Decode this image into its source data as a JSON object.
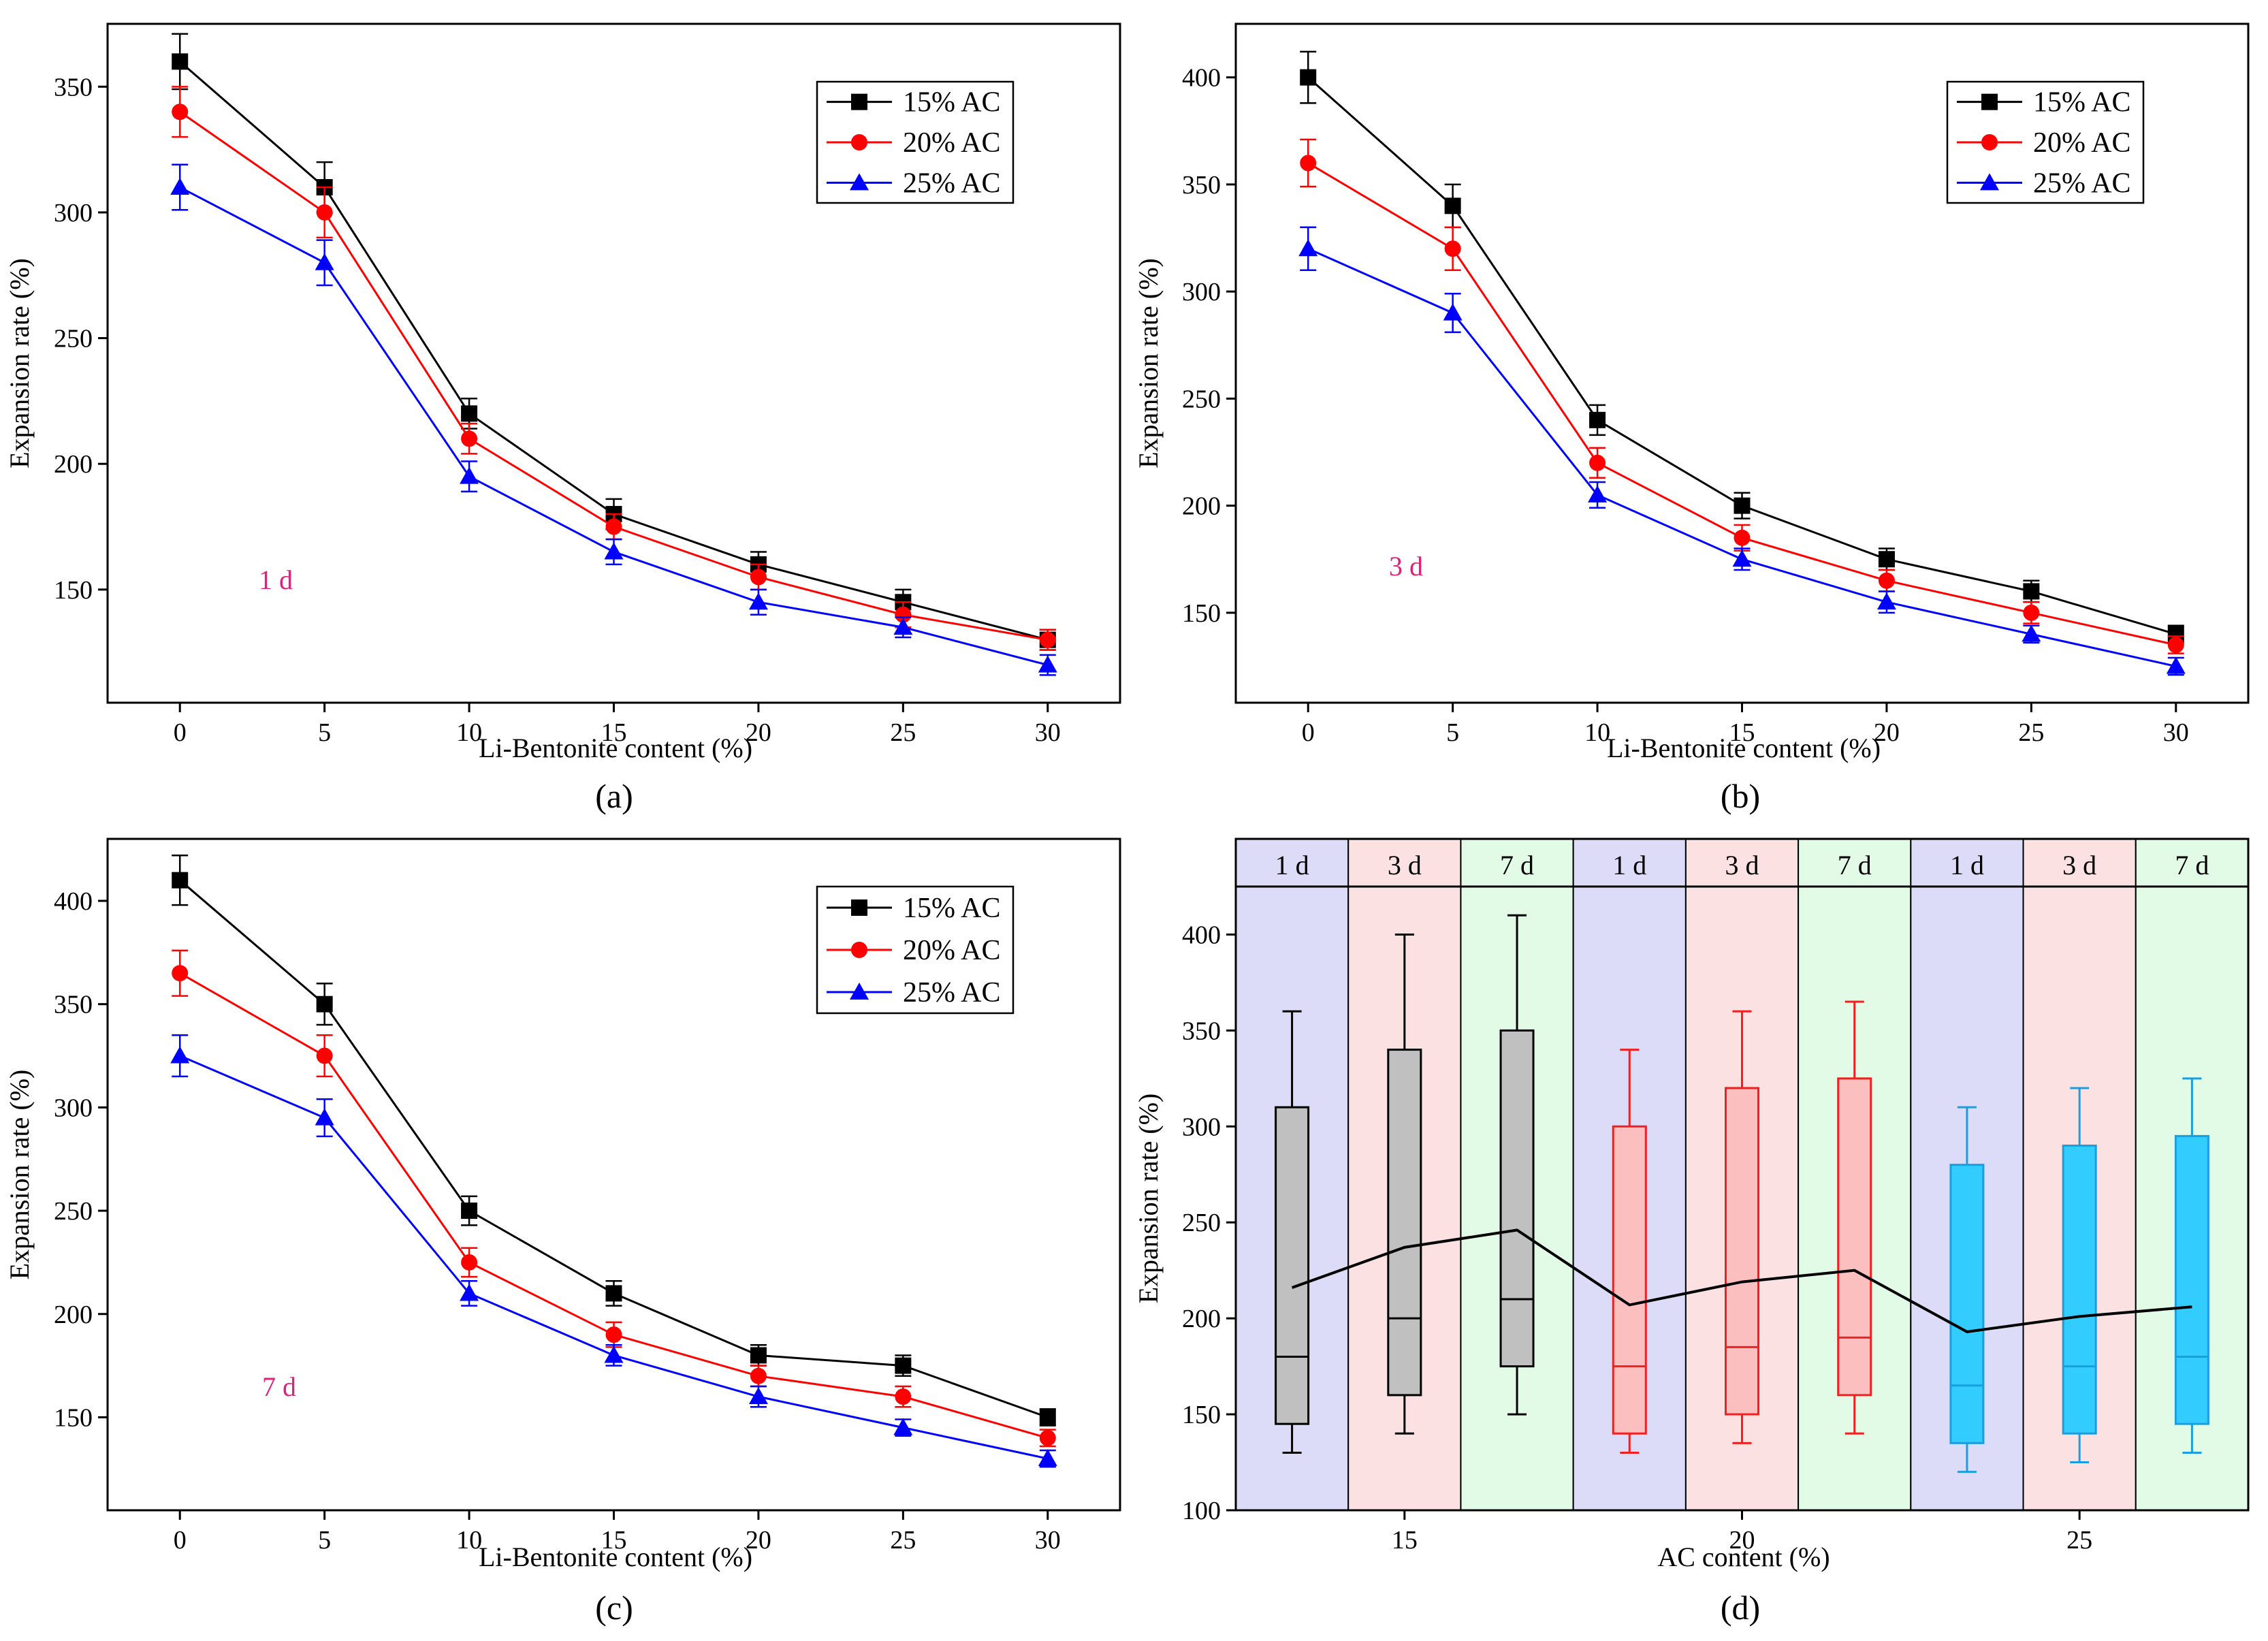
{
  "figure": {
    "panels": [
      "a",
      "b",
      "c",
      "d"
    ]
  },
  "chart_data": [
    {
      "id": "a",
      "type": "line",
      "caption": "(a)",
      "annotation": "1 d",
      "xlabel": "Li-Bentonite content (%)",
      "ylabel": "Expansion rate (%)",
      "x": [
        0,
        5,
        10,
        15,
        20,
        25,
        30
      ],
      "xticks": [
        "0",
        "5",
        "10",
        "15",
        "20",
        "25",
        "30"
      ],
      "yticks": [
        "150",
        "200",
        "250",
        "300",
        "350"
      ],
      "xlim": [
        -2.5,
        32.5
      ],
      "ylim": [
        105,
        375
      ],
      "legend_position": "top-right",
      "series": [
        {
          "name": "15% AC",
          "color": "#000000",
          "marker": "square",
          "values": [
            360,
            310,
            220,
            180,
            160,
            145,
            130
          ],
          "errors": [
            11,
            10,
            6,
            6,
            5,
            5,
            4
          ]
        },
        {
          "name": "20% AC",
          "color": "#ff0000",
          "marker": "circle",
          "values": [
            340,
            300,
            210,
            175,
            155,
            140,
            130
          ],
          "errors": [
            10,
            10,
            6,
            5,
            5,
            5,
            4
          ]
        },
        {
          "name": "25% AC",
          "color": "#0000ff",
          "marker": "triangle",
          "values": [
            310,
            280,
            195,
            165,
            145,
            135,
            120
          ],
          "errors": [
            9,
            9,
            6,
            5,
            5,
            4,
            4
          ]
        }
      ]
    },
    {
      "id": "b",
      "type": "line",
      "caption": "(b)",
      "annotation": "3 d",
      "xlabel": "Li-Bentonite content (%)",
      "ylabel": "Expansion rate (%)",
      "x": [
        0,
        5,
        10,
        15,
        20,
        25,
        30
      ],
      "xticks": [
        "0",
        "5",
        "10",
        "15",
        "20",
        "25",
        "30"
      ],
      "yticks": [
        "150",
        "200",
        "250",
        "300",
        "350",
        "400"
      ],
      "xlim": [
        -2.5,
        32.5
      ],
      "ylim": [
        108,
        425
      ],
      "legend_position": "top-right",
      "series": [
        {
          "name": "15% AC",
          "color": "#000000",
          "marker": "square",
          "values": [
            400,
            340,
            240,
            200,
            175,
            160,
            140
          ],
          "errors": [
            12,
            10,
            7,
            6,
            5,
            5,
            4
          ]
        },
        {
          "name": "20% AC",
          "color": "#ff0000",
          "marker": "circle",
          "values": [
            360,
            320,
            220,
            185,
            165,
            150,
            135
          ],
          "errors": [
            11,
            10,
            7,
            6,
            5,
            5,
            4
          ]
        },
        {
          "name": "25% AC",
          "color": "#0000ff",
          "marker": "triangle",
          "values": [
            320,
            290,
            205,
            175,
            155,
            140,
            125
          ],
          "errors": [
            10,
            9,
            6,
            5,
            5,
            4,
            4
          ]
        }
      ]
    },
    {
      "id": "c",
      "type": "line",
      "caption": "(c)",
      "annotation": "7 d",
      "xlabel": "Li-Bentonite content (%)",
      "ylabel": "Expansion rate (%)",
      "x": [
        0,
        5,
        10,
        15,
        20,
        25,
        30
      ],
      "xticks": [
        "0",
        "5",
        "10",
        "15",
        "20",
        "25",
        "30"
      ],
      "yticks": [
        "150",
        "200",
        "250",
        "300",
        "350",
        "400"
      ],
      "xlim": [
        -2.5,
        32.5
      ],
      "ylim": [
        105,
        430
      ],
      "legend_position": "top-right",
      "series": [
        {
          "name": "15% AC",
          "color": "#000000",
          "marker": "square",
          "values": [
            410,
            350,
            250,
            210,
            180,
            175,
            150
          ],
          "errors": [
            12,
            10,
            7,
            6,
            5,
            5,
            4
          ]
        },
        {
          "name": "20% AC",
          "color": "#ff0000",
          "marker": "circle",
          "values": [
            365,
            325,
            225,
            190,
            170,
            160,
            140
          ],
          "errors": [
            11,
            10,
            7,
            6,
            5,
            5,
            4
          ]
        },
        {
          "name": "25% AC",
          "color": "#0000ff",
          "marker": "triangle",
          "values": [
            325,
            295,
            210,
            180,
            160,
            145,
            130
          ],
          "errors": [
            10,
            9,
            6,
            5,
            5,
            4,
            4
          ]
        }
      ]
    },
    {
      "id": "d",
      "type": "box",
      "caption": "(d)",
      "xlabel": "AC content (%)",
      "ylabel": "Expansion rate (%)",
      "ylim": [
        100,
        425
      ],
      "yticks": [
        "100",
        "150",
        "200",
        "250",
        "300",
        "350",
        "400"
      ],
      "group_labels": [
        "15",
        "20",
        "25"
      ],
      "band_labels": [
        "1 d",
        "3 d",
        "7 d",
        "1 d",
        "3 d",
        "7 d",
        "1 d",
        "3 d",
        "7 d"
      ],
      "band_colors": [
        "#dcdcf8",
        "#fbe1e1",
        "#e2fbe6",
        "#dcdcf8",
        "#fbe1e1",
        "#e2fbe6",
        "#dcdcf8",
        "#fbe1e1",
        "#e2fbe6"
      ],
      "group_colors": {
        "15": {
          "fill": "#c0c0c0",
          "line": "#000000"
        },
        "20": {
          "fill": "#fcbfbf",
          "line": "#f02020"
        },
        "25": {
          "fill": "#33ccff",
          "line": "#1a9ee0"
        }
      },
      "boxes": [
        {
          "group": "15",
          "min": 130,
          "q1": 145,
          "median": 180,
          "q3": 310,
          "max": 360,
          "mean": 216
        },
        {
          "group": "15",
          "min": 140,
          "q1": 160,
          "median": 200,
          "q3": 340,
          "max": 400,
          "mean": 237
        },
        {
          "group": "15",
          "min": 150,
          "q1": 175,
          "median": 210,
          "q3": 350,
          "max": 410,
          "mean": 246
        },
        {
          "group": "20",
          "min": 130,
          "q1": 140,
          "median": 175,
          "q3": 300,
          "max": 340,
          "mean": 207
        },
        {
          "group": "20",
          "min": 135,
          "q1": 150,
          "median": 185,
          "q3": 320,
          "max": 360,
          "mean": 219
        },
        {
          "group": "20",
          "min": 140,
          "q1": 160,
          "median": 190,
          "q3": 325,
          "max": 365,
          "mean": 225
        },
        {
          "group": "25",
          "min": 120,
          "q1": 135,
          "median": 165,
          "q3": 280,
          "max": 310,
          "mean": 193
        },
        {
          "group": "25",
          "min": 125,
          "q1": 140,
          "median": 175,
          "q3": 290,
          "max": 320,
          "mean": 201
        },
        {
          "group": "25",
          "min": 130,
          "q1": 145,
          "median": 180,
          "q3": 295,
          "max": 325,
          "mean": 206
        }
      ]
    }
  ]
}
